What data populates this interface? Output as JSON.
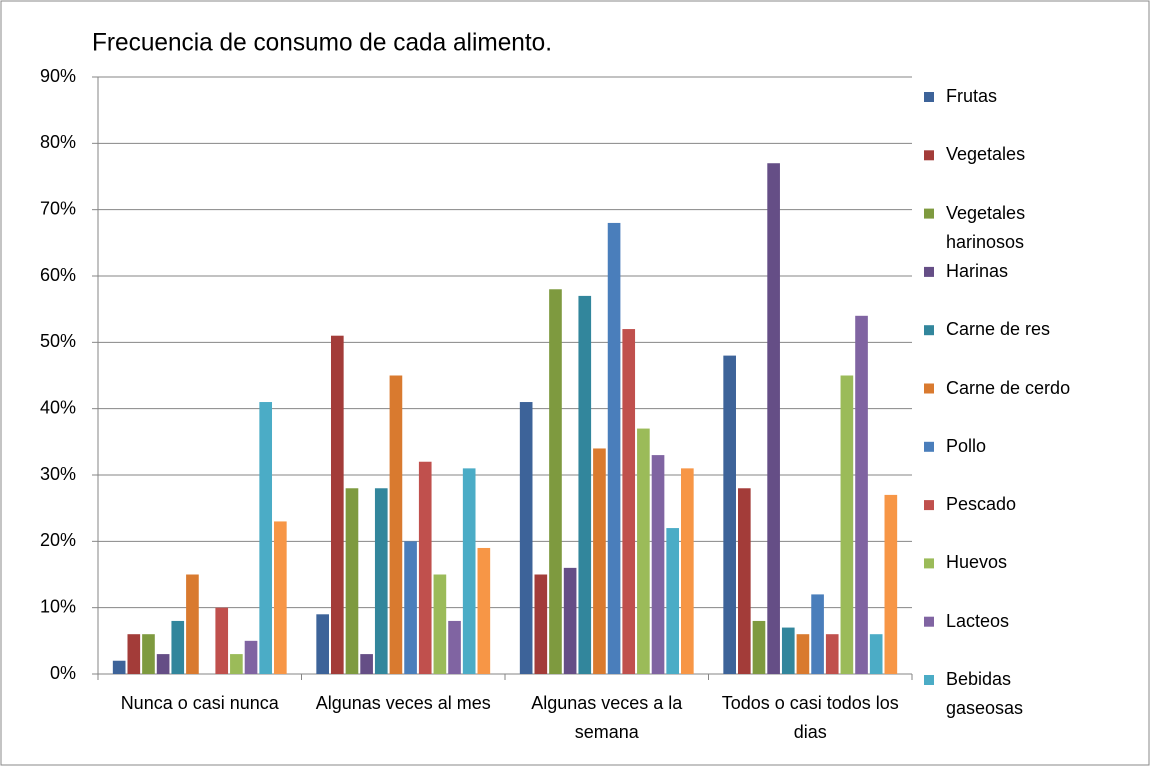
{
  "chart_data": {
    "type": "bar",
    "title": "Frecuencia de consumo de cada alimento.",
    "categories": [
      "Nunca o casi nunca",
      "Algunas veces al mes",
      "Algunas veces a la semana",
      "Todos o casi todos los dias"
    ],
    "series": [
      {
        "name": "Frutas",
        "color": "#3d6399",
        "values": [
          2,
          9,
          41,
          48
        ]
      },
      {
        "name": "Vegetales",
        "color": "#a33c39",
        "values": [
          6,
          51,
          15,
          28
        ]
      },
      {
        "name": "Vegetales harinosos",
        "color": "#7e9a3f",
        "values": [
          6,
          28,
          58,
          8
        ]
      },
      {
        "name": "Harinas",
        "color": "#654e86",
        "values": [
          3,
          3,
          16,
          77
        ]
      },
      {
        "name": "Carne de res",
        "color": "#32869c",
        "values": [
          8,
          28,
          57,
          7
        ]
      },
      {
        "name": "Carne de cerdo",
        "color": "#d97a2f",
        "values": [
          15,
          45,
          34,
          6
        ]
      },
      {
        "name": "Pollo",
        "color": "#4a7ebb",
        "values": [
          0,
          20,
          68,
          12
        ]
      },
      {
        "name": "Pescado",
        "color": "#c0504d",
        "values": [
          10,
          32,
          52,
          6
        ]
      },
      {
        "name": "Huevos",
        "color": "#9bbb59",
        "values": [
          3,
          15,
          37,
          45
        ]
      },
      {
        "name": "Lacteos",
        "color": "#8064a2",
        "values": [
          5,
          8,
          33,
          54
        ]
      },
      {
        "name": "Bebidas gaseosas",
        "color": "#4bacc6",
        "values": [
          41,
          31,
          22,
          6
        ]
      },
      {
        "name": null,
        "color": "#f79646",
        "values": [
          23,
          19,
          31,
          27
        ]
      }
    ],
    "ylim": [
      0,
      90
    ],
    "yticks": [
      {
        "value": 0,
        "label": "0%"
      },
      {
        "value": 10,
        "label": "10%"
      },
      {
        "value": 20,
        "label": "20%"
      },
      {
        "value": 30,
        "label": "30%"
      },
      {
        "value": 40,
        "label": "40%"
      },
      {
        "value": 50,
        "label": "50%"
      },
      {
        "value": 60,
        "label": "60%"
      },
      {
        "value": 70,
        "label": "70%"
      },
      {
        "value": 80,
        "label": "80%"
      },
      {
        "value": 90,
        "label": "90%"
      }
    ],
    "grid": true,
    "legend": "right"
  }
}
